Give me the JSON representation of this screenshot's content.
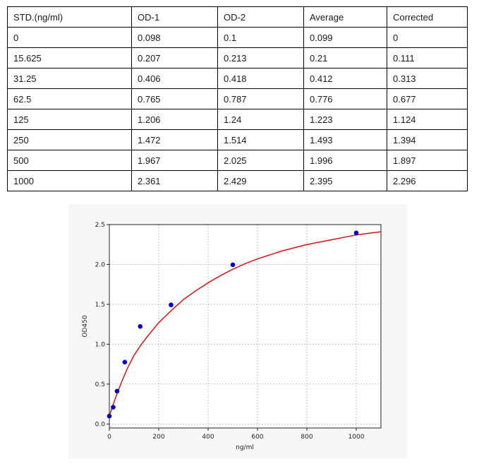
{
  "table": {
    "headers": [
      "STD.(ng/ml)",
      "OD-1",
      "OD-2",
      "Average",
      "Corrected"
    ],
    "rows": [
      [
        "0",
        "0.098",
        "0.1",
        "0.099",
        "0"
      ],
      [
        "15.625",
        "0.207",
        "0.213",
        "0.21",
        "0.111"
      ],
      [
        "31.25",
        "0.406",
        "0.418",
        "0.412",
        "0.313"
      ],
      [
        "62.5",
        "0.765",
        "0.787",
        "0.776",
        "0.677"
      ],
      [
        "125",
        "1.206",
        "1.24",
        "1.223",
        "1.124"
      ],
      [
        "250",
        "1.472",
        "1.514",
        "1.493",
        "1.394"
      ],
      [
        "500",
        "1.967",
        "2.025",
        "1.996",
        "1.897"
      ],
      [
        "1000",
        "2.361",
        "2.429",
        "2.395",
        "2.296"
      ]
    ]
  },
  "chart_data": {
    "type": "scatter",
    "title": "",
    "xlabel": "ng/ml",
    "ylabel": "OD450",
    "xlim": [
      0,
      1100
    ],
    "ylim": [
      -0.05,
      2.5
    ],
    "x_ticks": [
      0,
      200,
      400,
      600,
      800,
      1000
    ],
    "x_tick_labels": [
      "0",
      "200",
      "400",
      "600",
      "800",
      "1000"
    ],
    "y_ticks": [
      0.0,
      0.5,
      1.0,
      1.5,
      2.0,
      2.5
    ],
    "y_tick_labels": [
      "0.0",
      "0.5",
      "1.0",
      "1.5",
      "2.0",
      "2.5"
    ],
    "grid": true,
    "series": [
      {
        "kind": "points",
        "color": "#0000cc",
        "x": [
          0,
          15.625,
          31.25,
          62.5,
          125,
          250,
          500,
          1000
        ],
        "y": [
          0.099,
          0.21,
          0.412,
          0.776,
          1.223,
          1.493,
          1.996,
          2.395
        ]
      },
      {
        "kind": "fitted-curve",
        "color": "#dd1111",
        "x": [
          0,
          15,
          30,
          50,
          75,
          100,
          130,
          160,
          200,
          250,
          300,
          350,
          400,
          450,
          500,
          550,
          600,
          650,
          700,
          750,
          800,
          850,
          900,
          950,
          1000,
          1050,
          1100
        ],
        "y": [
          0.1,
          0.24,
          0.37,
          0.53,
          0.71,
          0.86,
          1.0,
          1.12,
          1.27,
          1.42,
          1.56,
          1.67,
          1.77,
          1.86,
          1.94,
          2.01,
          2.07,
          2.12,
          2.17,
          2.21,
          2.25,
          2.28,
          2.31,
          2.34,
          2.37,
          2.39,
          2.41
        ]
      }
    ]
  }
}
